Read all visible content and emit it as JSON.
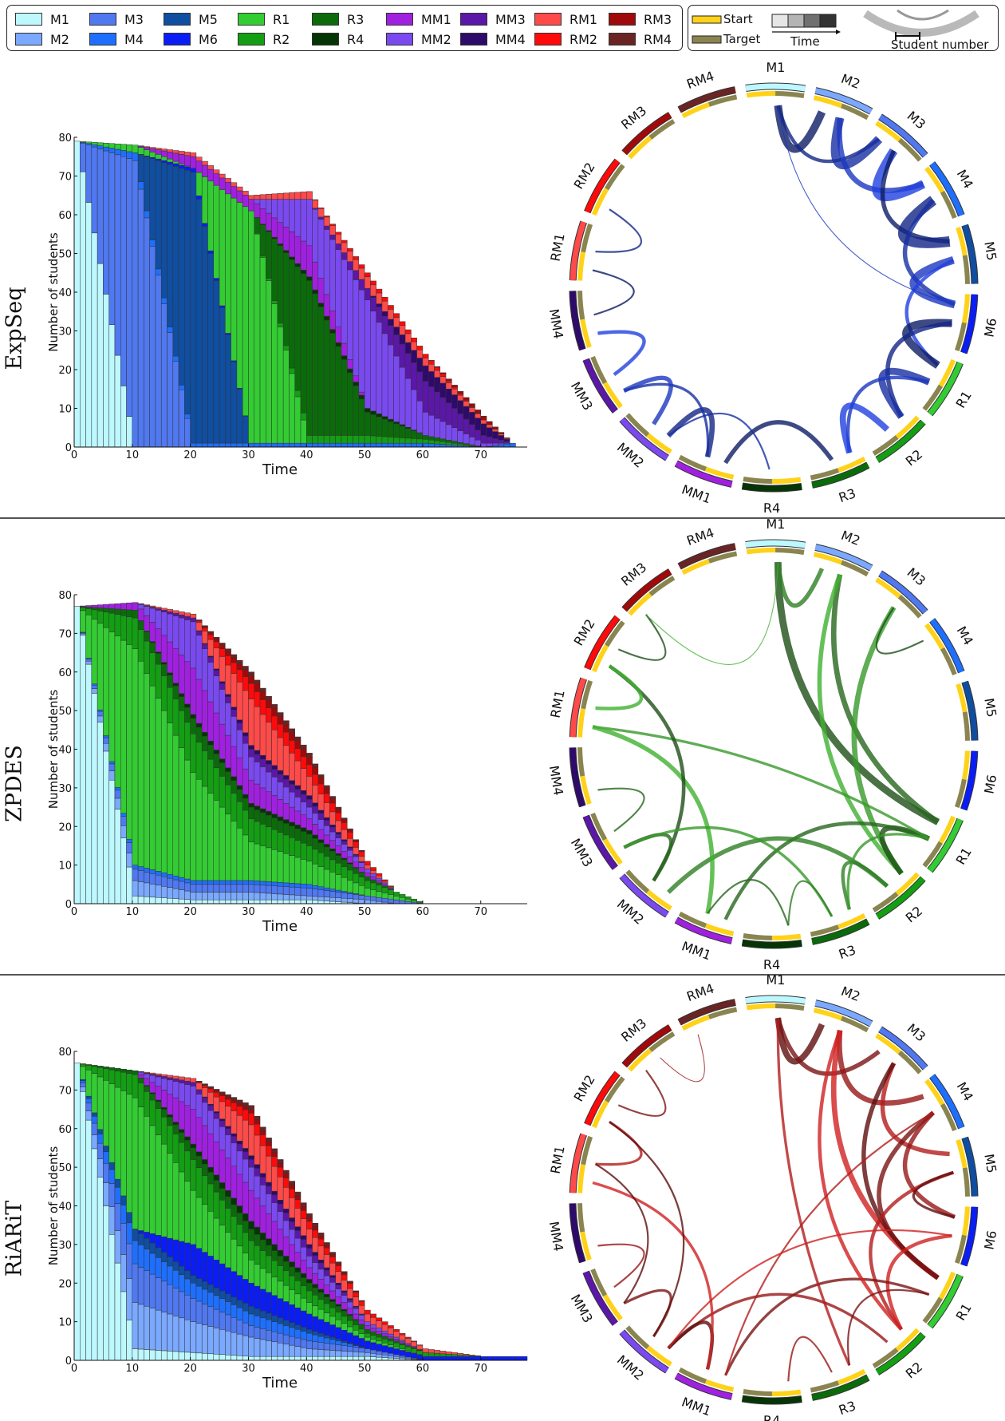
{
  "legend": {
    "items": [
      {
        "label": "M1",
        "color": "#bdf8ff"
      },
      {
        "label": "M2",
        "color": "#7ba9ff"
      },
      {
        "label": "M3",
        "color": "#5078f0"
      },
      {
        "label": "M4",
        "color": "#1f6fff"
      },
      {
        "label": "M5",
        "color": "#0f4ea0"
      },
      {
        "label": "M6",
        "color": "#0a1df5"
      },
      {
        "label": "R1",
        "color": "#33cc33"
      },
      {
        "label": "R2",
        "color": "#139e13"
      },
      {
        "label": "R3",
        "color": "#0b6b0b"
      },
      {
        "label": "R4",
        "color": "#053505"
      },
      {
        "label": "MM1",
        "color": "#a020e0"
      },
      {
        "label": "MM2",
        "color": "#7a4af0"
      },
      {
        "label": "MM3",
        "color": "#5b17a8"
      },
      {
        "label": "MM4",
        "color": "#2e0a6a"
      },
      {
        "label": "RM1",
        "color": "#ff4a4a"
      },
      {
        "label": "RM2",
        "color": "#ff0a0a"
      },
      {
        "label": "RM3",
        "color": "#a00a0a"
      },
      {
        "label": "RM4",
        "color": "#6a2424"
      }
    ],
    "start_label": "Start",
    "target_label": "Target",
    "start_color": "#ffd21a",
    "target_color": "#8a8550",
    "time_label": "Time",
    "student_number_label": "Student number"
  },
  "rows": [
    {
      "label": "ExpSeq",
      "arc_color": "#2040e0"
    },
    {
      "label": "ZPDES",
      "arc_color": "#40b030"
    },
    {
      "label": "RiARiT",
      "arc_color": "#d02020"
    }
  ],
  "chart_data": [
    {
      "type": "bar",
      "stacked": true,
      "title": "",
      "xlabel": "Time",
      "ylabel": "Number of students",
      "xlim": [
        0,
        78
      ],
      "ylim": [
        0,
        80
      ],
      "xticks": [
        0,
        10,
        20,
        30,
        40,
        50,
        60,
        70
      ],
      "yticks": [
        0,
        10,
        20,
        30,
        40,
        50,
        60,
        70,
        80
      ],
      "x": [
        0,
        10,
        20,
        30,
        40,
        50,
        60,
        70,
        75
      ],
      "series": [
        {
          "name": "M1",
          "values": [
            79,
            0,
            0,
            0,
            0,
            0,
            0,
            0,
            0
          ]
        },
        {
          "name": "M2",
          "values": [
            0,
            0,
            0,
            0,
            0,
            0,
            0,
            0,
            0
          ]
        },
        {
          "name": "M3",
          "values": [
            0,
            74,
            0,
            0,
            0,
            0,
            0,
            0,
            0
          ]
        },
        {
          "name": "M4",
          "values": [
            0,
            2,
            1,
            1,
            1,
            1,
            1,
            0,
            1
          ]
        },
        {
          "name": "M5",
          "values": [
            0,
            0,
            70,
            0,
            0,
            0,
            0,
            0,
            0
          ]
        },
        {
          "name": "M6",
          "values": [
            0,
            0,
            1,
            0,
            0,
            0,
            0,
            0,
            0
          ]
        },
        {
          "name": "R1",
          "values": [
            0,
            2,
            0,
            60,
            0,
            0,
            0,
            0,
            0
          ]
        },
        {
          "name": "R2",
          "values": [
            0,
            0,
            0,
            0,
            2,
            2,
            1,
            0,
            0
          ]
        },
        {
          "name": "R3",
          "values": [
            0,
            0,
            0,
            0,
            40,
            6,
            1,
            0,
            0
          ]
        },
        {
          "name": "R4",
          "values": [
            0,
            0,
            0,
            0,
            1,
            1,
            0,
            0,
            0
          ]
        },
        {
          "name": "MM1",
          "values": [
            0,
            0,
            3,
            3,
            8,
            0,
            0,
            0,
            0
          ]
        },
        {
          "name": "MM2",
          "values": [
            0,
            0,
            0,
            0,
            12,
            28,
            6,
            1,
            0
          ]
        },
        {
          "name": "MM3",
          "values": [
            0,
            0,
            0,
            0,
            0,
            3,
            8,
            2,
            0
          ]
        },
        {
          "name": "MM4",
          "values": [
            0,
            0,
            0,
            0,
            0,
            0,
            4,
            3,
            0
          ]
        },
        {
          "name": "RM1",
          "values": [
            0,
            0,
            1,
            1,
            2,
            3,
            2,
            1,
            0
          ]
        },
        {
          "name": "RM2",
          "values": [
            0,
            0,
            0,
            0,
            0,
            1,
            1,
            0,
            0
          ]
        },
        {
          "name": "RM3",
          "values": [
            0,
            0,
            0,
            0,
            0,
            0,
            0,
            1,
            0
          ]
        },
        {
          "name": "RM4",
          "values": [
            0,
            0,
            0,
            0,
            0,
            0,
            0,
            0,
            0
          ]
        }
      ]
    },
    {
      "type": "bar",
      "stacked": true,
      "title": "",
      "xlabel": "Time",
      "ylabel": "Number of students",
      "xlim": [
        0,
        78
      ],
      "ylim": [
        0,
        80
      ],
      "xticks": [
        0,
        10,
        20,
        30,
        40,
        50,
        60,
        70
      ],
      "yticks": [
        0,
        10,
        20,
        30,
        40,
        50,
        60,
        70,
        80
      ],
      "x": [
        0,
        10,
        20,
        30,
        40,
        50,
        55,
        60
      ],
      "series": [
        {
          "name": "M1",
          "values": [
            77,
            2,
            1,
            1,
            1,
            0,
            0,
            0
          ]
        },
        {
          "name": "M2",
          "values": [
            0,
            4,
            2,
            2,
            1,
            1,
            0,
            0
          ]
        },
        {
          "name": "M3",
          "values": [
            0,
            3,
            2,
            2,
            2,
            1,
            1,
            0
          ]
        },
        {
          "name": "M4",
          "values": [
            0,
            1,
            1,
            1,
            1,
            0,
            0,
            0
          ]
        },
        {
          "name": "M5",
          "values": [
            0,
            0,
            0,
            0,
            0,
            0,
            0,
            0
          ]
        },
        {
          "name": "M6",
          "values": [
            0,
            0,
            0,
            0,
            0,
            0,
            0,
            0
          ]
        },
        {
          "name": "R1",
          "values": [
            0,
            56,
            28,
            10,
            6,
            2,
            1,
            0
          ]
        },
        {
          "name": "R2",
          "values": [
            0,
            8,
            10,
            6,
            4,
            2,
            1,
            0
          ]
        },
        {
          "name": "R3",
          "values": [
            0,
            2,
            4,
            3,
            3,
            1,
            0,
            0
          ]
        },
        {
          "name": "R4",
          "values": [
            0,
            0,
            1,
            1,
            1,
            0,
            0,
            0
          ]
        },
        {
          "name": "MM1",
          "values": [
            0,
            2,
            12,
            6,
            3,
            1,
            0,
            0
          ]
        },
        {
          "name": "MM2",
          "values": [
            0,
            0,
            12,
            6,
            3,
            1,
            0,
            0
          ]
        },
        {
          "name": "MM3",
          "values": [
            0,
            0,
            1,
            2,
            2,
            0,
            0,
            0
          ]
        },
        {
          "name": "MM4",
          "values": [
            0,
            0,
            0,
            1,
            1,
            0,
            0,
            0
          ]
        },
        {
          "name": "RM1",
          "values": [
            0,
            0,
            1,
            12,
            5,
            1,
            0,
            0
          ]
        },
        {
          "name": "RM2",
          "values": [
            0,
            0,
            0,
            4,
            3,
            1,
            0,
            0
          ]
        },
        {
          "name": "RM3",
          "values": [
            0,
            0,
            0,
            2,
            2,
            0,
            0,
            0
          ]
        },
        {
          "name": "RM4",
          "values": [
            0,
            0,
            0,
            1,
            1,
            0,
            0,
            0
          ]
        }
      ]
    },
    {
      "type": "bar",
      "stacked": true,
      "title": "",
      "xlabel": "Time",
      "ylabel": "Number of students",
      "xlim": [
        0,
        78
      ],
      "ylim": [
        0,
        80
      ],
      "xticks": [
        0,
        10,
        20,
        30,
        40,
        50,
        60,
        70
      ],
      "yticks": [
        0,
        10,
        20,
        30,
        40,
        50,
        60,
        70,
        80
      ],
      "x": [
        0,
        10,
        20,
        30,
        40,
        50,
        60,
        70,
        77
      ],
      "series": [
        {
          "name": "M1",
          "values": [
            77,
            3,
            2,
            1,
            1,
            1,
            0,
            0,
            0
          ]
        },
        {
          "name": "M2",
          "values": [
            0,
            12,
            8,
            5,
            2,
            1,
            0,
            0,
            0
          ]
        },
        {
          "name": "M3",
          "values": [
            0,
            10,
            6,
            3,
            2,
            1,
            0,
            0,
            0
          ]
        },
        {
          "name": "M4",
          "values": [
            0,
            6,
            4,
            3,
            2,
            0,
            0,
            0,
            0
          ]
        },
        {
          "name": "M5",
          "values": [
            0,
            3,
            2,
            2,
            1,
            0,
            0,
            0,
            0
          ]
        },
        {
          "name": "M6",
          "values": [
            0,
            0,
            8,
            6,
            4,
            2,
            1,
            1,
            1
          ]
        },
        {
          "name": "R1",
          "values": [
            0,
            34,
            14,
            6,
            3,
            1,
            0,
            0,
            0
          ]
        },
        {
          "name": "R2",
          "values": [
            0,
            6,
            8,
            5,
            3,
            1,
            1,
            0,
            0
          ]
        },
        {
          "name": "R3",
          "values": [
            0,
            1,
            3,
            3,
            2,
            1,
            0,
            0,
            0
          ]
        },
        {
          "name": "R4",
          "values": [
            0,
            0,
            1,
            2,
            1,
            0,
            0,
            0,
            0
          ]
        },
        {
          "name": "MM1",
          "values": [
            0,
            0,
            9,
            8,
            3,
            1,
            0,
            0,
            0
          ]
        },
        {
          "name": "MM2",
          "values": [
            0,
            0,
            6,
            6,
            3,
            1,
            0,
            0,
            0
          ]
        },
        {
          "name": "MM3",
          "values": [
            0,
            0,
            1,
            2,
            2,
            0,
            0,
            0,
            0
          ]
        },
        {
          "name": "MM4",
          "values": [
            0,
            0,
            0,
            1,
            1,
            0,
            0,
            0,
            0
          ]
        },
        {
          "name": "RM1",
          "values": [
            0,
            0,
            1,
            8,
            4,
            2,
            1,
            0,
            0
          ]
        },
        {
          "name": "RM2",
          "values": [
            0,
            0,
            0,
            3,
            2,
            1,
            0,
            0,
            0
          ]
        },
        {
          "name": "RM3",
          "values": [
            0,
            0,
            0,
            1,
            1,
            0,
            0,
            0,
            0
          ]
        },
        {
          "name": "RM4",
          "values": [
            0,
            0,
            0,
            1,
            1,
            0,
            0,
            0,
            0
          ]
        }
      ]
    }
  ]
}
